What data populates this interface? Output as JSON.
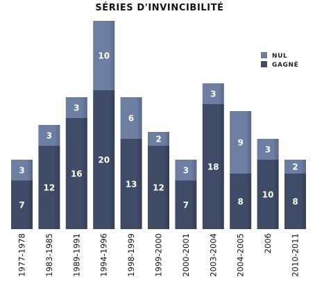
{
  "chart_data": {
    "type": "bar",
    "stacked": true,
    "title": "SÉRIES D'INVINCIBILITÉ",
    "categories": [
      "1977-1978",
      "1983-1985",
      "1989-1991",
      "1994-1996",
      "1998-1999",
      "1999-2000",
      "2000-2001",
      "2003-2004",
      "2004-2005",
      "2006",
      "2010-2011"
    ],
    "series": [
      {
        "name": "GAGNÉ",
        "color": "#3f4b67",
        "values": [
          7,
          12,
          16,
          20,
          13,
          12,
          7,
          18,
          8,
          10,
          8
        ]
      },
      {
        "name": "NUL",
        "color": "#6c7fa3",
        "values": [
          3,
          3,
          3,
          10,
          6,
          2,
          3,
          3,
          9,
          3,
          2
        ]
      }
    ],
    "ylim": [
      0,
      30
    ],
    "grid": false,
    "legend": "top-right",
    "legend_order": [
      "NUL",
      "GAGNÉ"
    ]
  }
}
